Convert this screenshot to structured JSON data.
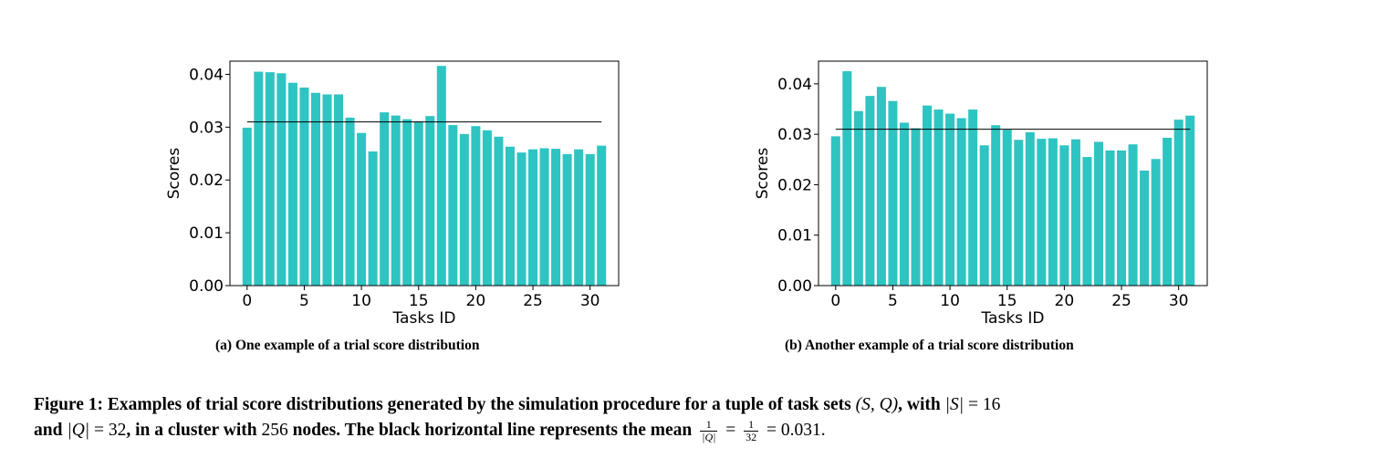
{
  "chart_data": [
    {
      "type": "bar",
      "x": [
        0,
        1,
        2,
        3,
        4,
        5,
        6,
        7,
        8,
        9,
        10,
        11,
        12,
        13,
        14,
        15,
        16,
        17,
        18,
        19,
        20,
        21,
        22,
        23,
        24,
        25,
        26,
        27,
        28,
        29,
        30,
        31
      ],
      "values": [
        0.0299,
        0.0405,
        0.0404,
        0.0402,
        0.0384,
        0.0375,
        0.0365,
        0.0362,
        0.0362,
        0.0318,
        0.0289,
        0.0254,
        0.0328,
        0.0322,
        0.0315,
        0.0311,
        0.0321,
        0.0416,
        0.0304,
        0.0287,
        0.0302,
        0.0294,
        0.0282,
        0.0263,
        0.0252,
        0.0258,
        0.026,
        0.0259,
        0.0249,
        0.0258,
        0.0249,
        0.0265
      ],
      "mean_line": 0.031,
      "xlabel": "Tasks ID",
      "ylabel": "Scores",
      "xticks": [
        "0",
        "5",
        "10",
        "15",
        "20",
        "25",
        "30"
      ],
      "yticks": [
        "0.00",
        "0.01",
        "0.02",
        "0.03",
        "0.04"
      ],
      "ylim": [
        0,
        0.0425
      ],
      "xlim": [
        -1.5,
        32.5
      ],
      "caption": "(a) One example of a trial score distribution",
      "bar_color": "#2ec4c2",
      "line_color": "#000000",
      "grid": false
    },
    {
      "type": "bar",
      "x": [
        0,
        1,
        2,
        3,
        4,
        5,
        6,
        7,
        8,
        9,
        10,
        11,
        12,
        13,
        14,
        15,
        16,
        17,
        18,
        19,
        20,
        21,
        22,
        23,
        24,
        25,
        26,
        27,
        28,
        29,
        30,
        31
      ],
      "values": [
        0.0296,
        0.0425,
        0.0346,
        0.0376,
        0.0394,
        0.0366,
        0.0323,
        0.0312,
        0.0357,
        0.0349,
        0.0341,
        0.0332,
        0.0349,
        0.0278,
        0.0318,
        0.0309,
        0.0289,
        0.0304,
        0.0291,
        0.0292,
        0.0278,
        0.029,
        0.0255,
        0.0285,
        0.0268,
        0.0268,
        0.028,
        0.0228,
        0.0251,
        0.0293,
        0.0329,
        0.0337
      ],
      "mean_line": 0.031,
      "xlabel": "Tasks ID",
      "ylabel": "Scores",
      "xticks": [
        "0",
        "5",
        "10",
        "15",
        "20",
        "25",
        "30"
      ],
      "yticks": [
        "0.00",
        "0.01",
        "0.02",
        "0.03",
        "0.04"
      ],
      "ylim": [
        0,
        0.0445
      ],
      "xlim": [
        -1.5,
        32.5
      ],
      "caption": "(b) Another example of a trial score distribution",
      "bar_color": "#2ec4c2",
      "line_color": "#000000",
      "grid": false
    }
  ],
  "caption": {
    "prefix": "Figure 1: Examples of trial score distributions generated by the simulation procedure for a tuple of task sets ",
    "tuple": "(S, Q)",
    "with_text": ", with ",
    "s_size": "|S|",
    "s_eq": " = 16",
    "and_text": "and ",
    "q_size": "|Q|",
    "q_eq": " = 32",
    "cluster_text": ", in a cluster with ",
    "nodes_num": "256",
    "nodes_text": " nodes. The black horizontal line represents the mean ",
    "frac1_num": "1",
    "frac1_den": "|Q|",
    "eq1": " = ",
    "frac2_num": "1",
    "frac2_den": "32",
    "eq2": " = 0.031.",
    "end": ""
  }
}
